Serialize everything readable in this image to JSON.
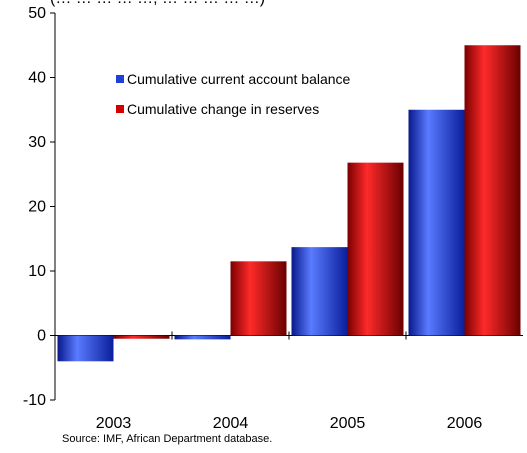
{
  "chart_data": {
    "type": "bar",
    "title": "",
    "subtitle": "(… … … … …, … … … … …)",
    "xlabel": "",
    "ylabel": "",
    "categories": [
      "2003",
      "2004",
      "2005",
      "2006"
    ],
    "series": [
      {
        "name": "Cumulative current account balance",
        "color": "#1f3fd6",
        "values": [
          -4.0,
          -0.6,
          13.7,
          35.0
        ]
      },
      {
        "name": "Cumulative change in reserves",
        "color": "#d40000",
        "values": [
          -0.5,
          11.5,
          26.8,
          45.0
        ]
      }
    ],
    "ylim": [
      -10,
      50
    ],
    "yticks": [
      "-10",
      "0",
      "10",
      "20",
      "30",
      "40",
      "50"
    ],
    "grid": false,
    "legend_position": "top-left",
    "note": "Source: IMF, African Department database."
  }
}
